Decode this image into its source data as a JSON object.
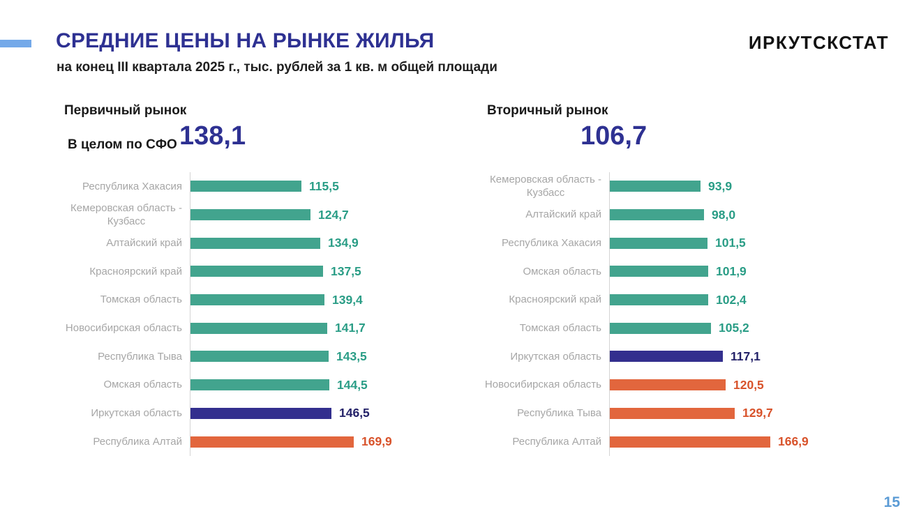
{
  "slide": {
    "title": "СРЕДНИЕ ЦЕНЫ НА РЫНКЕ ЖИЛЬЯ",
    "subtitle": "на конец III квартала 2025 г., тыс. рублей за 1 кв. м общей площади",
    "brand": "ИРКУТСКСТАТ",
    "page_number": "15"
  },
  "colors": {
    "accent_blue": "#74A9E9",
    "title_blue": "#2E3192",
    "teal_bar": "#42A48E",
    "teal_text": "#2A9D86",
    "indigo_bar": "#332F8E",
    "indigo_text": "#232168",
    "orange_bar": "#E2663D",
    "orange_text": "#D8532B",
    "category_label_gray": "#A6A6A6",
    "axis_gray": "#D4D4D4",
    "page_number_blue": "#5B9BD5"
  },
  "chart_data": [
    {
      "type": "bar",
      "orientation": "horizontal",
      "title": "Первичный рынок",
      "overall_label": "В целом по СФО",
      "overall_value": "138,1",
      "unit": "тыс. рублей за 1 кв. м общей площади",
      "xlim": [
        0,
        175
      ],
      "grid": false,
      "legend": false,
      "items": [
        {
          "label": "Республика Хакасия",
          "value": 115.5,
          "display": "115,5",
          "color_key": "teal"
        },
        {
          "label": "Кемеровская область -\nКузбасс",
          "value": 124.7,
          "display": "124,7",
          "color_key": "teal"
        },
        {
          "label": "Алтайский край",
          "value": 134.9,
          "display": "134,9",
          "color_key": "teal"
        },
        {
          "label": "Красноярский край",
          "value": 137.5,
          "display": "137,5",
          "color_key": "teal"
        },
        {
          "label": "Томская область",
          "value": 139.4,
          "display": "139,4",
          "color_key": "teal"
        },
        {
          "label": "Новосибирская область",
          "value": 141.7,
          "display": "141,7",
          "color_key": "teal"
        },
        {
          "label": "Республика Тыва",
          "value": 143.5,
          "display": "143,5",
          "color_key": "teal"
        },
        {
          "label": "Омская область",
          "value": 144.5,
          "display": "144,5",
          "color_key": "teal"
        },
        {
          "label": "Иркутская область",
          "value": 146.5,
          "display": "146,5",
          "color_key": "indigo"
        },
        {
          "label": "Республика Алтай",
          "value": 169.9,
          "display": "169,9",
          "color_key": "orange"
        }
      ]
    },
    {
      "type": "bar",
      "orientation": "horizontal",
      "title": "Вторичный рынок",
      "overall_value": "106,7",
      "unit": "тыс. рублей за 1 кв. м общей площади",
      "xlim": [
        0,
        175
      ],
      "grid": false,
      "legend": false,
      "items": [
        {
          "label": "Кемеровская область -\nКузбасс",
          "value": 93.9,
          "display": "93,9",
          "color_key": "teal"
        },
        {
          "label": "Алтайский край",
          "value": 98.0,
          "display": "98,0",
          "color_key": "teal"
        },
        {
          "label": "Республика Хакасия",
          "value": 101.5,
          "display": "101,5",
          "color_key": "teal"
        },
        {
          "label": "Омская область",
          "value": 101.9,
          "display": "101,9",
          "color_key": "teal"
        },
        {
          "label": "Красноярский край",
          "value": 102.4,
          "display": "102,4",
          "color_key": "teal"
        },
        {
          "label": "Томская область",
          "value": 105.2,
          "display": "105,2",
          "color_key": "teal"
        },
        {
          "label": "Иркутская область",
          "value": 117.1,
          "display": "117,1",
          "color_key": "indigo"
        },
        {
          "label": "Новосибирская область",
          "value": 120.5,
          "display": "120,5",
          "color_key": "orange"
        },
        {
          "label": "Республика Тыва",
          "value": 129.7,
          "display": "129,7",
          "color_key": "orange"
        },
        {
          "label": "Республика Алтай",
          "value": 166.9,
          "display": "166,9",
          "color_key": "orange"
        }
      ]
    }
  ]
}
